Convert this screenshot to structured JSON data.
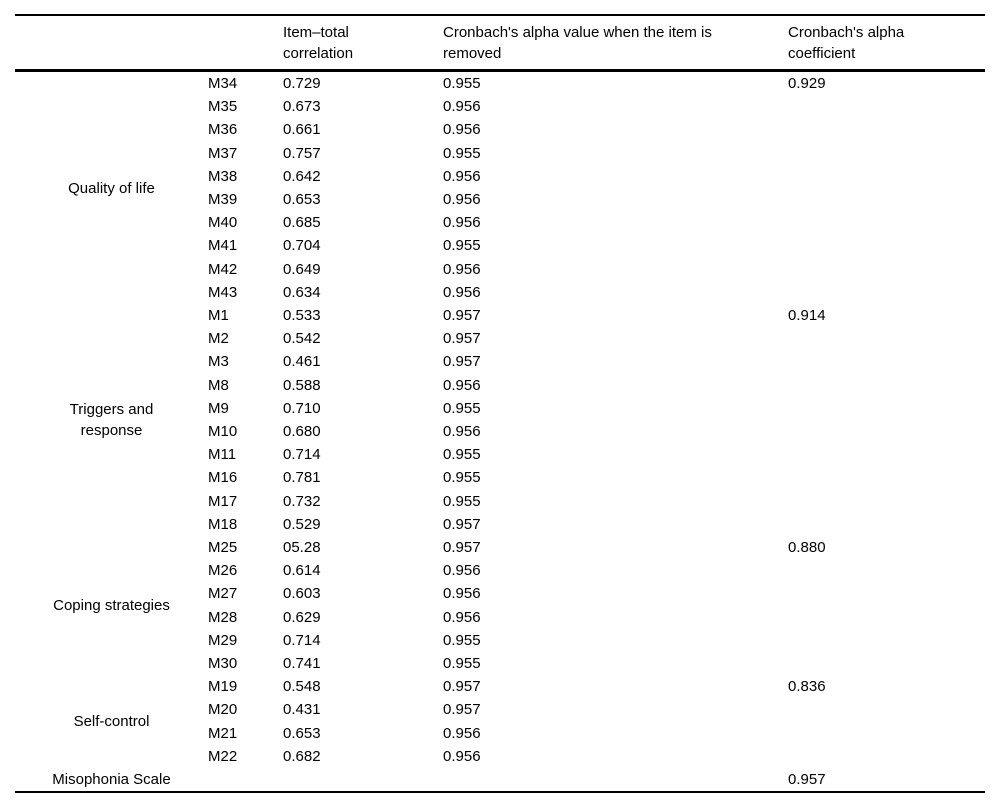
{
  "table": {
    "col_headers": {
      "group": "",
      "item": "",
      "item_total": "Item–total\ncorrelation",
      "alpha_removed": "Cronbach's alpha value when the item is\nremoved",
      "alpha_coeff": "Cronbach's alpha\ncoefficient"
    },
    "groups": [
      {
        "label": "Quality of life",
        "alpha_coefficient": "0.929",
        "items": [
          {
            "item": "M34",
            "item_total": "0.729",
            "alpha_removed": "0.955"
          },
          {
            "item": "M35",
            "item_total": "0.673",
            "alpha_removed": "0.956"
          },
          {
            "item": "M36",
            "item_total": "0.661",
            "alpha_removed": "0.956"
          },
          {
            "item": "M37",
            "item_total": "0.757",
            "alpha_removed": "0.955"
          },
          {
            "item": "M38",
            "item_total": "0.642",
            "alpha_removed": "0.956"
          },
          {
            "item": "M39",
            "item_total": "0.653",
            "alpha_removed": "0.956"
          },
          {
            "item": "M40",
            "item_total": "0.685",
            "alpha_removed": "0.956"
          },
          {
            "item": "M41",
            "item_total": "0.704",
            "alpha_removed": "0.955"
          },
          {
            "item": "M42",
            "item_total": "0.649",
            "alpha_removed": "0.956"
          },
          {
            "item": "M43",
            "item_total": "0.634",
            "alpha_removed": "0.956"
          }
        ]
      },
      {
        "label": "Triggers and\nresponse",
        "alpha_coefficient": "0.914",
        "items": [
          {
            "item": "M1",
            "item_total": "0.533",
            "alpha_removed": "0.957"
          },
          {
            "item": "M2",
            "item_total": "0.542",
            "alpha_removed": "0.957"
          },
          {
            "item": "M3",
            "item_total": "0.461",
            "alpha_removed": "0.957"
          },
          {
            "item": "M8",
            "item_total": "0.588",
            "alpha_removed": "0.956"
          },
          {
            "item": "M9",
            "item_total": "0.710",
            "alpha_removed": "0.955"
          },
          {
            "item": "M10",
            "item_total": "0.680",
            "alpha_removed": "0.956"
          },
          {
            "item": "M11",
            "item_total": "0.714",
            "alpha_removed": "0.955"
          },
          {
            "item": "M16",
            "item_total": "0.781",
            "alpha_removed": "0.955"
          },
          {
            "item": "M17",
            "item_total": "0.732",
            "alpha_removed": "0.955"
          },
          {
            "item": "M18",
            "item_total": "0.529",
            "alpha_removed": "0.957"
          }
        ]
      },
      {
        "label": "Coping strategies",
        "alpha_coefficient": "0.880",
        "items": [
          {
            "item": "M25",
            "item_total": "05.28",
            "alpha_removed": "0.957"
          },
          {
            "item": "M26",
            "item_total": "0.614",
            "alpha_removed": "0.956"
          },
          {
            "item": "M27",
            "item_total": "0.603",
            "alpha_removed": "0.956"
          },
          {
            "item": "M28",
            "item_total": "0.629",
            "alpha_removed": "0.956"
          },
          {
            "item": "M29",
            "item_total": "0.714",
            "alpha_removed": "0.955"
          },
          {
            "item": "M30",
            "item_total": "0.741",
            "alpha_removed": "0.955"
          }
        ]
      },
      {
        "label": "Self-control",
        "alpha_coefficient": "0.836",
        "items": [
          {
            "item": "M19",
            "item_total": "0.548",
            "alpha_removed": "0.957"
          },
          {
            "item": "M20",
            "item_total": "0.431",
            "alpha_removed": "0.957"
          },
          {
            "item": "M21",
            "item_total": "0.653",
            "alpha_removed": "0.956"
          },
          {
            "item": "M22",
            "item_total": "0.682",
            "alpha_removed": "0.956"
          }
        ]
      },
      {
        "label": "Misophonia Scale",
        "alpha_coefficient": "0.957",
        "items": []
      }
    ]
  }
}
